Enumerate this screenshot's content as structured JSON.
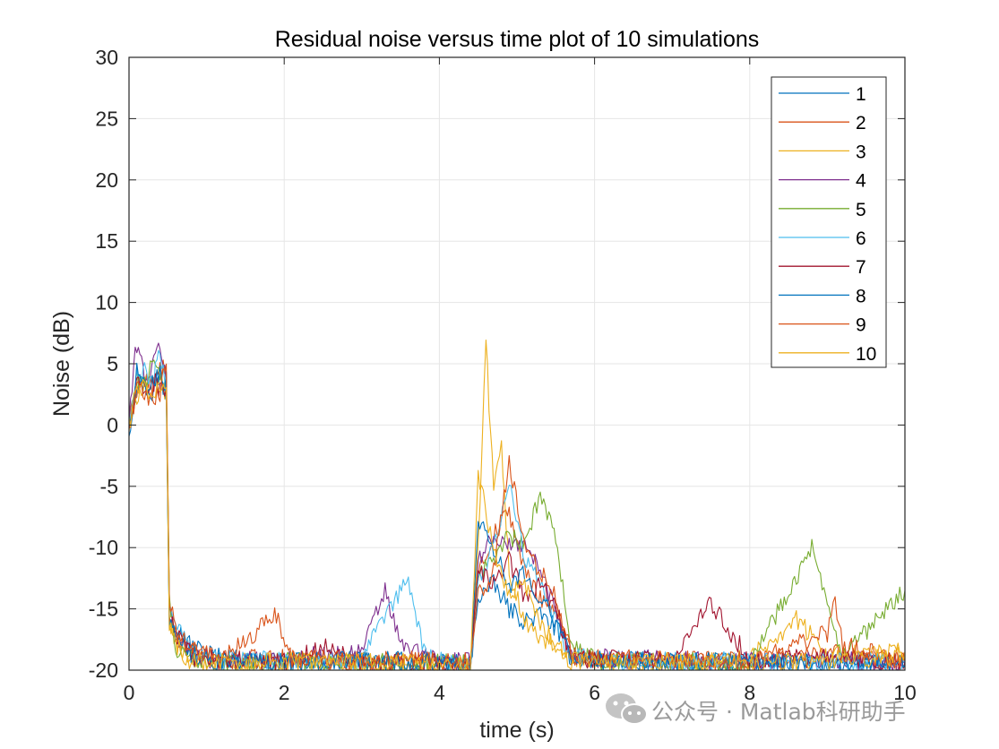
{
  "chart_data": {
    "type": "line",
    "title": "Residual noise versus time plot of 10 simulations",
    "xlabel": "time (s)",
    "ylabel": "Noise (dB)",
    "xlim": [
      0,
      10
    ],
    "ylim": [
      -20,
      30
    ],
    "xticks": [
      0,
      2,
      4,
      6,
      8,
      10
    ],
    "yticks": [
      30,
      25,
      20,
      15,
      10,
      5,
      0,
      -5,
      -10,
      -15,
      -20
    ],
    "xtick_labels": [
      "0",
      "2",
      "4",
      "6",
      "8",
      "10"
    ],
    "ytick_labels": [
      "30",
      "25",
      "20",
      "15",
      "10",
      "5",
      "0",
      "-5",
      "-10",
      "-15",
      "-20"
    ],
    "grid": true,
    "legend_position": "top-right",
    "series": [
      {
        "name": "1",
        "color": "#0072BD",
        "values": [
          [
            0,
            -0.5
          ],
          [
            0.1,
            3.5
          ],
          [
            0.2,
            3.2
          ],
          [
            0.3,
            2.6
          ],
          [
            0.4,
            3.8
          ],
          [
            0.48,
            2.5
          ],
          [
            0.52,
            -16
          ],
          [
            0.6,
            -16.5
          ],
          [
            0.8,
            -18
          ],
          [
            1.2,
            -19
          ],
          [
            2,
            -19.4
          ],
          [
            3,
            -19.2
          ],
          [
            4,
            -19.3
          ],
          [
            4.4,
            -19.6
          ],
          [
            4.5,
            -14
          ],
          [
            4.7,
            -13
          ],
          [
            4.9,
            -15
          ],
          [
            5.1,
            -16
          ],
          [
            5.3,
            -15.5
          ],
          [
            5.5,
            -16.5
          ],
          [
            5.7,
            -19
          ],
          [
            6,
            -19.2
          ],
          [
            7,
            -19.3
          ],
          [
            8,
            -19.4
          ],
          [
            9,
            -19.5
          ],
          [
            10,
            -19.6
          ]
        ]
      },
      {
        "name": "2",
        "color": "#D95319",
        "values": [
          [
            0,
            0
          ],
          [
            0.1,
            3
          ],
          [
            0.2,
            3.6
          ],
          [
            0.3,
            3.1
          ],
          [
            0.4,
            4.5
          ],
          [
            0.48,
            4.8
          ],
          [
            0.52,
            -15
          ],
          [
            0.6,
            -17
          ],
          [
            0.8,
            -18.5
          ],
          [
            1.2,
            -19.2
          ],
          [
            2,
            -19
          ],
          [
            3,
            -19.3
          ],
          [
            4,
            -19.4
          ],
          [
            4.4,
            -19.5
          ],
          [
            4.5,
            -12
          ],
          [
            4.7,
            -9
          ],
          [
            4.9,
            -7
          ],
          [
            5.1,
            -12
          ],
          [
            5.3,
            -14
          ],
          [
            5.5,
            -15
          ],
          [
            5.7,
            -18.8
          ],
          [
            6,
            -19.1
          ],
          [
            7,
            -19.2
          ],
          [
            8,
            -19.3
          ],
          [
            9,
            -18.5
          ],
          [
            10,
            -19.4
          ]
        ]
      },
      {
        "name": "3",
        "color": "#EDB120",
        "values": [
          [
            0,
            -0.3
          ],
          [
            0.1,
            2.5
          ],
          [
            0.2,
            3.4
          ],
          [
            0.3,
            2.8
          ],
          [
            0.4,
            3.3
          ],
          [
            0.48,
            2.9
          ],
          [
            0.52,
            -16
          ],
          [
            0.6,
            -17.8
          ],
          [
            0.8,
            -19
          ],
          [
            1.2,
            -19.3
          ],
          [
            2,
            -19.4
          ],
          [
            3,
            -19.2
          ],
          [
            4,
            -19.5
          ],
          [
            4.4,
            -19.7
          ],
          [
            4.5,
            -10
          ],
          [
            4.6,
            6.5
          ],
          [
            4.7,
            -5
          ],
          [
            4.8,
            -2
          ],
          [
            4.9,
            -12
          ],
          [
            5.1,
            -16
          ],
          [
            5.3,
            -17.5
          ],
          [
            5.5,
            -18
          ],
          [
            5.7,
            -19.3
          ],
          [
            6,
            -19.3
          ],
          [
            7,
            -19.4
          ],
          [
            8,
            -19.1
          ],
          [
            8.6,
            -15.8
          ],
          [
            9,
            -18.8
          ],
          [
            10,
            -18.5
          ]
        ]
      },
      {
        "name": "4",
        "color": "#7E2F8E",
        "values": [
          [
            0,
            0.5
          ],
          [
            0.1,
            6.8
          ],
          [
            0.2,
            4
          ],
          [
            0.3,
            4.5
          ],
          [
            0.4,
            6.8
          ],
          [
            0.48,
            3.5
          ],
          [
            0.52,
            -15
          ],
          [
            0.6,
            -17
          ],
          [
            0.8,
            -18.7
          ],
          [
            1.2,
            -19.3
          ],
          [
            2,
            -19.1
          ],
          [
            3,
            -18.5
          ],
          [
            3.3,
            -13.5
          ],
          [
            3.5,
            -18
          ],
          [
            4,
            -19.2
          ],
          [
            4.4,
            -19.4
          ],
          [
            4.5,
            -11
          ],
          [
            4.7,
            -9
          ],
          [
            4.9,
            -10
          ],
          [
            5.1,
            -9.5
          ],
          [
            5.3,
            -12
          ],
          [
            5.5,
            -15
          ],
          [
            5.7,
            -18.8
          ],
          [
            6,
            -19
          ],
          [
            7,
            -19.2
          ],
          [
            8,
            -19.3
          ],
          [
            9,
            -19.2
          ],
          [
            10,
            -19.5
          ]
        ]
      },
      {
        "name": "5",
        "color": "#77AC30",
        "values": [
          [
            0,
            -0.2
          ],
          [
            0.1,
            4
          ],
          [
            0.2,
            3.8
          ],
          [
            0.3,
            4.6
          ],
          [
            0.4,
            4
          ],
          [
            0.48,
            3.1
          ],
          [
            0.52,
            -14
          ],
          [
            0.6,
            -18.5
          ],
          [
            0.8,
            -19.1
          ],
          [
            1.2,
            -19.4
          ],
          [
            2,
            -19.3
          ],
          [
            3,
            -19.5
          ],
          [
            4,
            -19.2
          ],
          [
            4.4,
            -19.5
          ],
          [
            4.5,
            -12
          ],
          [
            4.7,
            -11
          ],
          [
            4.9,
            -9
          ],
          [
            5.1,
            -10
          ],
          [
            5.3,
            -5.5
          ],
          [
            5.5,
            -9
          ],
          [
            5.7,
            -18
          ],
          [
            6,
            -19.2
          ],
          [
            7,
            -19.3
          ],
          [
            8,
            -19.4
          ],
          [
            8.8,
            -10
          ],
          [
            9,
            -15
          ],
          [
            9.2,
            -19
          ],
          [
            10,
            -13.5
          ]
        ]
      },
      {
        "name": "6",
        "color": "#4DBEEE",
        "values": [
          [
            0,
            0
          ],
          [
            0.1,
            3.8
          ],
          [
            0.2,
            4.2
          ],
          [
            0.3,
            3.5
          ],
          [
            0.4,
            5.8
          ],
          [
            0.48,
            3
          ],
          [
            0.52,
            -15
          ],
          [
            0.6,
            -16
          ],
          [
            0.8,
            -18.4
          ],
          [
            1.2,
            -19.1
          ],
          [
            2,
            -19.2
          ],
          [
            3,
            -19.1
          ],
          [
            3.6,
            -12.5
          ],
          [
            3.8,
            -18.5
          ],
          [
            4,
            -19.3
          ],
          [
            4.4,
            -19.4
          ],
          [
            4.5,
            -13
          ],
          [
            4.7,
            -10
          ],
          [
            4.9,
            -4.5
          ],
          [
            5.1,
            -11
          ],
          [
            5.3,
            -13
          ],
          [
            5.5,
            -16
          ],
          [
            5.7,
            -19
          ],
          [
            6,
            -19.1
          ],
          [
            7,
            -19.3
          ],
          [
            8,
            -19.2
          ],
          [
            9,
            -19.4
          ],
          [
            10,
            -19.3
          ]
        ]
      },
      {
        "name": "7",
        "color": "#A2142F",
        "values": [
          [
            0,
            -0.4
          ],
          [
            0.1,
            3.2
          ],
          [
            0.2,
            2.8
          ],
          [
            0.3,
            3.6
          ],
          [
            0.4,
            3.1
          ],
          [
            0.48,
            2.8
          ],
          [
            0.52,
            -15.5
          ],
          [
            0.6,
            -17.2
          ],
          [
            0.8,
            -18.9
          ],
          [
            1.2,
            -19.2
          ],
          [
            2,
            -19.3
          ],
          [
            2.6,
            -18
          ],
          [
            3,
            -19.4
          ],
          [
            4,
            -19.3
          ],
          [
            4.4,
            -19.5
          ],
          [
            4.5,
            -12
          ],
          [
            4.7,
            -13
          ],
          [
            4.9,
            -11
          ],
          [
            5.1,
            -14
          ],
          [
            5.3,
            -13
          ],
          [
            5.5,
            -15
          ],
          [
            5.7,
            -19
          ],
          [
            6,
            -19.1
          ],
          [
            7,
            -19.2
          ],
          [
            7.5,
            -14.5
          ],
          [
            8,
            -19.2
          ],
          [
            9,
            -19
          ],
          [
            10,
            -19.4
          ]
        ]
      },
      {
        "name": "8",
        "color": "#0072BD",
        "values": [
          [
            0,
            0
          ],
          [
            0.1,
            4.5
          ],
          [
            0.2,
            3
          ],
          [
            0.3,
            4
          ],
          [
            0.4,
            4.2
          ],
          [
            0.48,
            3.5
          ],
          [
            0.52,
            -16
          ],
          [
            0.6,
            -16.8
          ],
          [
            0.8,
            -18.6
          ],
          [
            1.2,
            -19.3
          ],
          [
            2,
            -19.4
          ],
          [
            3,
            -19.2
          ],
          [
            4,
            -19.4
          ],
          [
            4.4,
            -19.6
          ],
          [
            4.5,
            -7.5
          ],
          [
            4.7,
            -10
          ],
          [
            4.9,
            -13
          ],
          [
            5.1,
            -12
          ],
          [
            5.3,
            -14
          ],
          [
            5.5,
            -16
          ],
          [
            5.7,
            -19.1
          ],
          [
            6,
            -19.2
          ],
          [
            7,
            -19.4
          ],
          [
            8,
            -19.3
          ],
          [
            9,
            -19.5
          ],
          [
            10,
            -19.6
          ]
        ]
      },
      {
        "name": "9",
        "color": "#D95319",
        "values": [
          [
            0,
            -0.2
          ],
          [
            0.1,
            3
          ],
          [
            0.2,
            2.4
          ],
          [
            0.3,
            2.2
          ],
          [
            0.4,
            2.8
          ],
          [
            0.48,
            4.5
          ],
          [
            0.52,
            -14
          ],
          [
            0.6,
            -17
          ],
          [
            0.8,
            -18.3
          ],
          [
            1.2,
            -19.2
          ],
          [
            1.9,
            -15.5
          ],
          [
            2.1,
            -19
          ],
          [
            3,
            -19.3
          ],
          [
            4,
            -19.2
          ],
          [
            4.4,
            -19.4
          ],
          [
            4.5,
            -14
          ],
          [
            4.7,
            -12
          ],
          [
            4.9,
            -3
          ],
          [
            5.1,
            -10
          ],
          [
            5.3,
            -12
          ],
          [
            5.5,
            -14
          ],
          [
            5.7,
            -18.7
          ],
          [
            6,
            -19
          ],
          [
            7,
            -19.1
          ],
          [
            8,
            -19.2
          ],
          [
            9,
            -17
          ],
          [
            9.1,
            -14.5
          ],
          [
            9.2,
            -18
          ],
          [
            10,
            -19.3
          ]
        ]
      },
      {
        "name": "10",
        "color": "#EDB120",
        "values": [
          [
            0,
            0.2
          ],
          [
            0.1,
            2.8
          ],
          [
            0.2,
            3.1
          ],
          [
            0.3,
            2.6
          ],
          [
            0.4,
            3.3
          ],
          [
            0.48,
            2.6
          ],
          [
            0.52,
            -16
          ],
          [
            0.6,
            -18
          ],
          [
            0.8,
            -19.3
          ],
          [
            1.2,
            -19.5
          ],
          [
            2,
            -19.3
          ],
          [
            3,
            -19.4
          ],
          [
            4,
            -19.5
          ],
          [
            4.4,
            -19.6
          ],
          [
            4.5,
            -4
          ],
          [
            4.7,
            -10
          ],
          [
            4.9,
            -14
          ],
          [
            5.1,
            -13
          ],
          [
            5.3,
            -16
          ],
          [
            5.5,
            -18
          ],
          [
            5.7,
            -19.3
          ],
          [
            6,
            -19.4
          ],
          [
            7,
            -19.3
          ],
          [
            8,
            -19.4
          ],
          [
            9,
            -19.2
          ],
          [
            10,
            -18.8
          ]
        ]
      }
    ]
  },
  "watermark": {
    "text": "公众号 · Matlab科研助手",
    "icon": "wechat-icon"
  },
  "colors": {
    "axis": "#262626",
    "grid": "#e6e6e6",
    "watermark": "#9a9a9a"
  }
}
